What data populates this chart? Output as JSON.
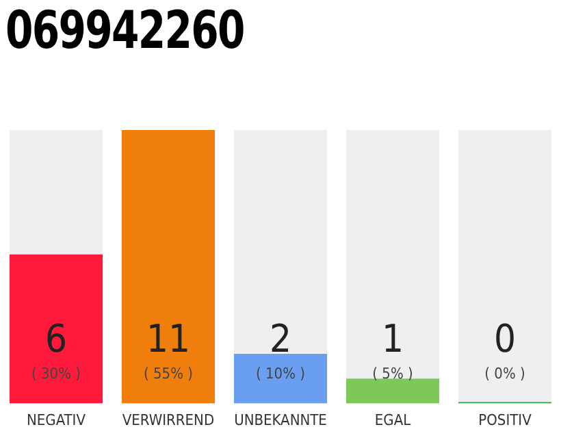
{
  "chart_data": {
    "type": "bar",
    "title": "069942260",
    "categories": [
      "NEGATIV",
      "VERWIRREND",
      "UNBEKANNTE",
      "EGAL",
      "POSITIV"
    ],
    "values": [
      6,
      11,
      2,
      1,
      0
    ],
    "colors": [
      "#ff1a3c",
      "#f07e0c",
      "#6a9ef0",
      "#7ec85a",
      "#2ea84a"
    ],
    "annotations": [
      "( 30% )",
      "( 55% )",
      "( 10% )",
      "( 5% )",
      "( 0% )"
    ],
    "tick_labels": "x",
    "data_labels": true,
    "grid": false,
    "legend": false
  }
}
